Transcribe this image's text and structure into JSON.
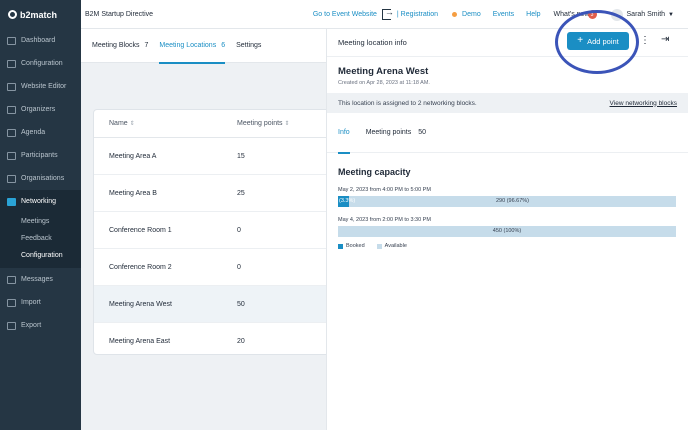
{
  "app": {
    "logo": "b2match",
    "event_title": "B2M Startup Directive"
  },
  "topbar": {
    "go_to_event": "Go to Event Website",
    "registration": "| Registration",
    "demo": "Demo",
    "events": "Events",
    "help": "Help",
    "whats_new": "What's new",
    "whats_new_badge": "3",
    "user_name": "Sarah Smith"
  },
  "sidebar": {
    "items": [
      {
        "label": "Dashboard",
        "icon": "dashboard-icon"
      },
      {
        "label": "Configuration",
        "icon": "settings-icon"
      },
      {
        "label": "Website Editor",
        "icon": "editor-icon"
      },
      {
        "label": "Organizers",
        "icon": "organizers-icon"
      },
      {
        "label": "Agenda",
        "icon": "agenda-icon"
      },
      {
        "label": "Participants",
        "icon": "participants-icon"
      },
      {
        "label": "Organisations",
        "icon": "organisations-icon"
      },
      {
        "label": "Networking",
        "icon": "networking-icon",
        "active": true
      },
      {
        "label": "Messages",
        "icon": "messages-icon"
      },
      {
        "label": "Import",
        "icon": "import-icon"
      },
      {
        "label": "Export",
        "icon": "export-icon"
      }
    ],
    "networking_sub": [
      {
        "label": "Meetings"
      },
      {
        "label": "Feedback"
      },
      {
        "label": "Configuration",
        "active": true
      }
    ]
  },
  "main": {
    "tabs": [
      {
        "label": "Meeting Blocks",
        "count": "7"
      },
      {
        "label": "Meeting Locations",
        "count": "6",
        "active": true
      },
      {
        "label": "Settings",
        "count": ""
      }
    ],
    "table": {
      "headers": {
        "name": "Name",
        "points": "Meeting points"
      },
      "rows": [
        {
          "name": "Meeting Area A",
          "points": "15"
        },
        {
          "name": "Meeting Area B",
          "points": "25"
        },
        {
          "name": "Conference Room 1",
          "points": "0"
        },
        {
          "name": "Conference Room 2",
          "points": "0"
        },
        {
          "name": "Meeting Arena West",
          "points": "50",
          "selected": true
        },
        {
          "name": "Meeting Arena East",
          "points": "20"
        }
      ]
    }
  },
  "panel": {
    "title": "Meeting location info",
    "add_point": "Add point",
    "location_name": "Meeting Arena West",
    "created": "Created on Apr 28, 2023 at 11:18 AM.",
    "assigned_text": "This location is assigned to 2 networking blocks.",
    "view_blocks": "View networking blocks",
    "tabs": {
      "info": "Info",
      "meeting_points": "Meeting points",
      "meeting_points_count": "50"
    },
    "capacity_title": "Meeting capacity",
    "slots": [
      {
        "label": "May 2, 2023 from 4:00 PM to 5:00 PM",
        "booked_text": "(3.3%)",
        "booked_fraction": 0.033,
        "available_text": "290 (96.67%)"
      },
      {
        "label": "May 4, 2023 from 2:00 PM to 3:30 PM",
        "booked_text": "",
        "booked_fraction": 0,
        "available_text": "450 (100%)"
      }
    ],
    "legend": {
      "booked": "Booked",
      "available": "Available"
    },
    "colors": {
      "booked": "#1a8ec4",
      "available": "#c6dcea",
      "highlight": "#3b54b8"
    }
  }
}
